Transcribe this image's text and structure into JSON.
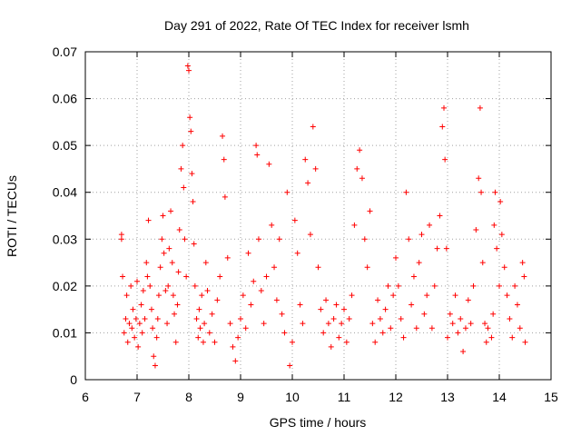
{
  "chart_data": {
    "type": "scatter",
    "title": "Day 291 of 2022, Rate Of TEC Index for receiver lsmh",
    "xlabel": "GPS time / hours",
    "ylabel": "ROTI / TECUs",
    "xlim": [
      6,
      15
    ],
    "ylim": [
      0,
      0.07
    ],
    "x_ticks": [
      "6",
      "7",
      "8",
      "9",
      "10",
      "11",
      "12",
      "13",
      "14",
      "15"
    ],
    "y_ticks": [
      "0",
      "0.01",
      "0.02",
      "0.03",
      "0.04",
      "0.05",
      "0.06",
      "0.07"
    ],
    "grid": true,
    "marker": "plus",
    "series": [
      {
        "color": "#ff0000",
        "points": [
          [
            6.7,
            0.031
          ],
          [
            6.7,
            0.03
          ],
          [
            6.72,
            0.022
          ],
          [
            6.75,
            0.01
          ],
          [
            6.78,
            0.013
          ],
          [
            6.8,
            0.018
          ],
          [
            6.82,
            0.008
          ],
          [
            6.85,
            0.012
          ],
          [
            6.88,
            0.02
          ],
          [
            6.9,
            0.011
          ],
          [
            6.92,
            0.015
          ],
          [
            6.95,
            0.009
          ],
          [
            6.98,
            0.013
          ],
          [
            7.0,
            0.021
          ],
          [
            7.02,
            0.007
          ],
          [
            7.05,
            0.012
          ],
          [
            7.08,
            0.016
          ],
          [
            7.1,
            0.01
          ],
          [
            7.12,
            0.019
          ],
          [
            7.15,
            0.013
          ],
          [
            7.18,
            0.025
          ],
          [
            7.2,
            0.022
          ],
          [
            7.22,
            0.034
          ],
          [
            7.25,
            0.02
          ],
          [
            7.28,
            0.015
          ],
          [
            7.3,
            0.011
          ],
          [
            7.32,
            0.005
          ],
          [
            7.35,
            0.003
          ],
          [
            7.38,
            0.009
          ],
          [
            7.4,
            0.013
          ],
          [
            7.42,
            0.018
          ],
          [
            7.45,
            0.024
          ],
          [
            7.48,
            0.03
          ],
          [
            7.5,
            0.035
          ],
          [
            7.52,
            0.027
          ],
          [
            7.55,
            0.019
          ],
          [
            7.58,
            0.012
          ],
          [
            7.6,
            0.02
          ],
          [
            7.62,
            0.028
          ],
          [
            7.65,
            0.036
          ],
          [
            7.68,
            0.025
          ],
          [
            7.7,
            0.018
          ],
          [
            7.72,
            0.014
          ],
          [
            7.75,
            0.008
          ],
          [
            7.78,
            0.016
          ],
          [
            7.8,
            0.023
          ],
          [
            7.82,
            0.032
          ],
          [
            7.85,
            0.045
          ],
          [
            7.88,
            0.05
          ],
          [
            7.9,
            0.041
          ],
          [
            7.92,
            0.03
          ],
          [
            7.95,
            0.022
          ],
          [
            7.98,
            0.067
          ],
          [
            8.0,
            0.066
          ],
          [
            8.02,
            0.056
          ],
          [
            8.04,
            0.053
          ],
          [
            8.06,
            0.044
          ],
          [
            8.08,
            0.038
          ],
          [
            8.1,
            0.029
          ],
          [
            8.12,
            0.02
          ],
          [
            8.15,
            0.013
          ],
          [
            8.18,
            0.009
          ],
          [
            8.2,
            0.015
          ],
          [
            8.22,
            0.011
          ],
          [
            8.25,
            0.018
          ],
          [
            8.28,
            0.008
          ],
          [
            8.3,
            0.012
          ],
          [
            8.33,
            0.025
          ],
          [
            8.36,
            0.019
          ],
          [
            8.4,
            0.01
          ],
          [
            8.45,
            0.014
          ],
          [
            8.5,
            0.008
          ],
          [
            8.55,
            0.017
          ],
          [
            8.6,
            0.022
          ],
          [
            8.65,
            0.052
          ],
          [
            8.68,
            0.047
          ],
          [
            8.7,
            0.039
          ],
          [
            8.75,
            0.026
          ],
          [
            8.8,
            0.012
          ],
          [
            8.85,
            0.007
          ],
          [
            8.9,
            0.004
          ],
          [
            8.95,
            0.009
          ],
          [
            9.0,
            0.013
          ],
          [
            9.05,
            0.018
          ],
          [
            9.1,
            0.011
          ],
          [
            9.15,
            0.027
          ],
          [
            9.2,
            0.016
          ],
          [
            9.25,
            0.021
          ],
          [
            9.3,
            0.05
          ],
          [
            9.32,
            0.048
          ],
          [
            9.35,
            0.03
          ],
          [
            9.4,
            0.019
          ],
          [
            9.45,
            0.012
          ],
          [
            9.5,
            0.022
          ],
          [
            9.55,
            0.046
          ],
          [
            9.6,
            0.033
          ],
          [
            9.65,
            0.024
          ],
          [
            9.7,
            0.017
          ],
          [
            9.75,
            0.03
          ],
          [
            9.8,
            0.014
          ],
          [
            9.85,
            0.01
          ],
          [
            9.9,
            0.04
          ],
          [
            9.95,
            0.003
          ],
          [
            10.0,
            0.008
          ],
          [
            10.05,
            0.034
          ],
          [
            10.1,
            0.027
          ],
          [
            10.15,
            0.016
          ],
          [
            10.2,
            0.012
          ],
          [
            10.25,
            0.047
          ],
          [
            10.3,
            0.042
          ],
          [
            10.35,
            0.031
          ],
          [
            10.4,
            0.054
          ],
          [
            10.45,
            0.045
          ],
          [
            10.5,
            0.024
          ],
          [
            10.55,
            0.015
          ],
          [
            10.6,
            0.01
          ],
          [
            10.65,
            0.017
          ],
          [
            10.7,
            0.012
          ],
          [
            10.75,
            0.007
          ],
          [
            10.8,
            0.013
          ],
          [
            10.85,
            0.016
          ],
          [
            10.9,
            0.009
          ],
          [
            10.95,
            0.012
          ],
          [
            11.0,
            0.015
          ],
          [
            11.05,
            0.008
          ],
          [
            11.1,
            0.013
          ],
          [
            11.15,
            0.018
          ],
          [
            11.2,
            0.033
          ],
          [
            11.25,
            0.045
          ],
          [
            11.3,
            0.049
          ],
          [
            11.35,
            0.043
          ],
          [
            11.4,
            0.03
          ],
          [
            11.45,
            0.024
          ],
          [
            11.5,
            0.036
          ],
          [
            11.55,
            0.012
          ],
          [
            11.6,
            0.008
          ],
          [
            11.65,
            0.017
          ],
          [
            11.7,
            0.013
          ],
          [
            11.75,
            0.01
          ],
          [
            11.8,
            0.015
          ],
          [
            11.85,
            0.02
          ],
          [
            11.9,
            0.011
          ],
          [
            11.95,
            0.018
          ],
          [
            12.0,
            0.026
          ],
          [
            12.05,
            0.02
          ],
          [
            12.1,
            0.013
          ],
          [
            12.15,
            0.009
          ],
          [
            12.2,
            0.04
          ],
          [
            12.25,
            0.03
          ],
          [
            12.3,
            0.016
          ],
          [
            12.35,
            0.022
          ],
          [
            12.4,
            0.011
          ],
          [
            12.45,
            0.025
          ],
          [
            12.5,
            0.031
          ],
          [
            12.55,
            0.014
          ],
          [
            12.6,
            0.018
          ],
          [
            12.65,
            0.033
          ],
          [
            12.7,
            0.011
          ],
          [
            12.75,
            0.02
          ],
          [
            12.8,
            0.028
          ],
          [
            12.85,
            0.035
          ],
          [
            12.9,
            0.054
          ],
          [
            12.93,
            0.058
          ],
          [
            12.95,
            0.047
          ],
          [
            12.98,
            0.028
          ],
          [
            13.0,
            0.009
          ],
          [
            13.05,
            0.014
          ],
          [
            13.1,
            0.012
          ],
          [
            13.15,
            0.018
          ],
          [
            13.2,
            0.01
          ],
          [
            13.25,
            0.013
          ],
          [
            13.3,
            0.006
          ],
          [
            13.35,
            0.011
          ],
          [
            13.4,
            0.017
          ],
          [
            13.45,
            0.012
          ],
          [
            13.5,
            0.02
          ],
          [
            13.55,
            0.032
          ],
          [
            13.6,
            0.043
          ],
          [
            13.63,
            0.058
          ],
          [
            13.65,
            0.04
          ],
          [
            13.68,
            0.025
          ],
          [
            13.72,
            0.012
          ],
          [
            13.75,
            0.008
          ],
          [
            13.78,
            0.011
          ],
          [
            13.85,
            0.009
          ],
          [
            13.88,
            0.014
          ],
          [
            13.9,
            0.033
          ],
          [
            13.92,
            0.04
          ],
          [
            13.95,
            0.028
          ],
          [
            14.0,
            0.02
          ],
          [
            14.02,
            0.038
          ],
          [
            14.05,
            0.031
          ],
          [
            14.1,
            0.024
          ],
          [
            14.15,
            0.018
          ],
          [
            14.2,
            0.013
          ],
          [
            14.25,
            0.009
          ],
          [
            14.3,
            0.02
          ],
          [
            14.35,
            0.016
          ],
          [
            14.4,
            0.011
          ],
          [
            14.45,
            0.025
          ],
          [
            14.48,
            0.022
          ],
          [
            14.5,
            0.008
          ]
        ]
      }
    ]
  }
}
